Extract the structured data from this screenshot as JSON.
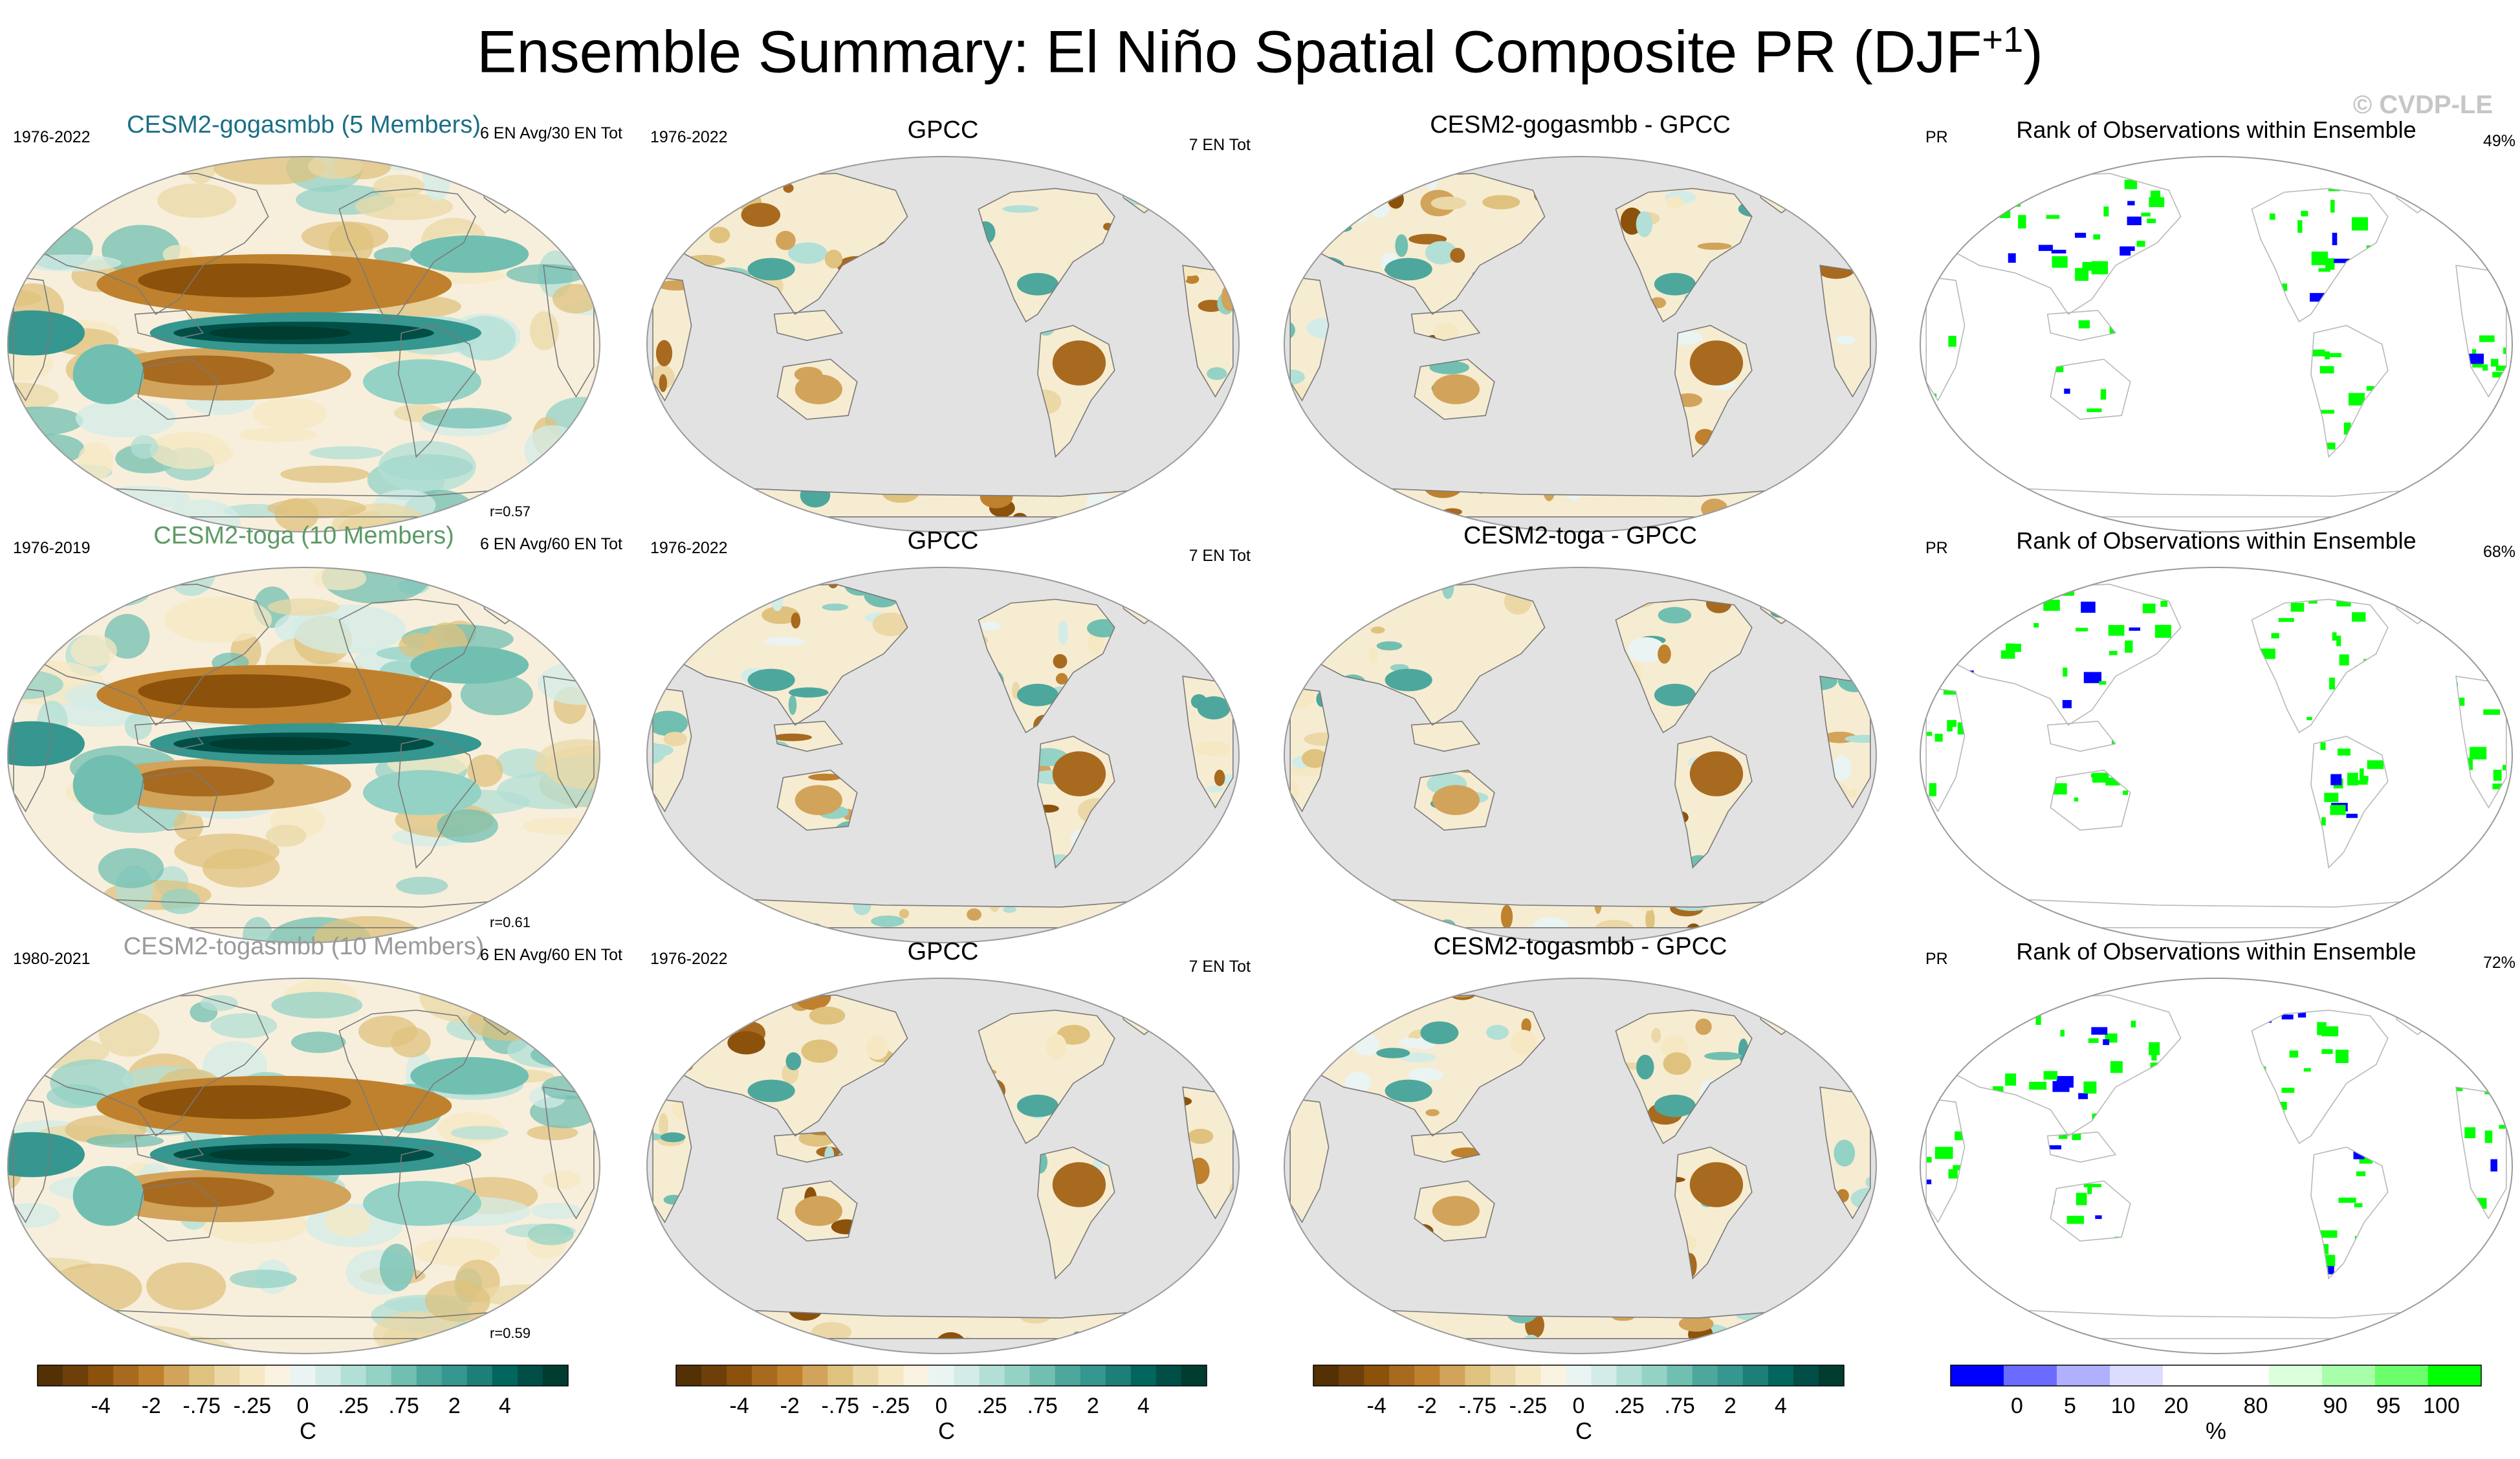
{
  "title": {
    "main": "Ensemble Summary: El Niño Spatial Composite PR (DJF",
    "sup": "+1",
    "end": ")"
  },
  "watermark": "© CVDP-LE",
  "colors": {
    "brown_green": [
      "#543005",
      "#6e3f0b",
      "#8c510a",
      "#a86a1f",
      "#bf812d",
      "#d2a35a",
      "#dfc27d",
      "#ebd8a6",
      "#f6e8c3",
      "#faf3e1",
      "#eaf4f2",
      "#d3ece8",
      "#b2dfd6",
      "#93d2c5",
      "#71bfb1",
      "#4ea79c",
      "#35978f",
      "#1d7f77",
      "#01665e",
      "#014e47",
      "#003c30"
    ],
    "rank": [
      "#0000ff",
      "#6b6bff",
      "#b0b0ff",
      "#dcdcff",
      "#ffffff",
      "#ffffff",
      "#dcffdc",
      "#a9ffa9",
      "#6bff6b",
      "#00ff00"
    ],
    "ocean_gray": "#e2e2e2",
    "rank_green": "#00ff00",
    "rank_blue": "#0000ff"
  },
  "rows": [
    {
      "model": {
        "title": "CESM2-gogasmbb (5 Members)",
        "title_color": "#1a6f86",
        "years": "1976-2022",
        "events": "6 EN Avg/30 EN Tot",
        "corr": "r=0.57"
      },
      "obs": {
        "title": "GPCC",
        "years": "1976-2022",
        "events": "7 EN Tot"
      },
      "diff": {
        "title": "CESM2-gogasmbb - GPCC"
      },
      "rank": {
        "title": "Rank of Observations within Ensemble",
        "var": "PR",
        "pct": "49%"
      }
    },
    {
      "model": {
        "title": "CESM2-toga (10 Members)",
        "title_color": "#5d9a64",
        "years": "1976-2019",
        "events": "6 EN Avg/60 EN Tot",
        "corr": "r=0.61"
      },
      "obs": {
        "title": "GPCC",
        "years": "1976-2022",
        "events": "7 EN Tot"
      },
      "diff": {
        "title": "CESM2-toga - GPCC"
      },
      "rank": {
        "title": "Rank of Observations within Ensemble",
        "var": "PR",
        "pct": "68%"
      }
    },
    {
      "model": {
        "title": "CESM2-togasmbb (10 Members)",
        "title_color": "#9a9a9a",
        "years": "1980-2021",
        "events": "6 EN Avg/60 EN Tot",
        "corr": "r=0.59"
      },
      "obs": {
        "title": "GPCC",
        "years": "1976-2022",
        "events": "7 EN Tot"
      },
      "diff": {
        "title": "CESM2-togasmbb - GPCC"
      },
      "rank": {
        "title": "Rank of Observations within Ensemble",
        "var": "PR",
        "pct": "72%"
      }
    }
  ],
  "colorbars": {
    "anomaly": {
      "ticks": [
        "-4",
        "-2",
        "-.75",
        "-.25",
        "0",
        ".25",
        ".75",
        "2",
        "4"
      ],
      "unit": "C"
    },
    "rank": {
      "ticks": [
        "0",
        "5",
        "10",
        "20",
        "80",
        "90",
        "95",
        "100"
      ],
      "unit": "%"
    }
  },
  "chart_data": {
    "type": "heatmap",
    "variable": "PR",
    "season": "DJF+1",
    "composite": "El Niño",
    "correlations": [
      0.57,
      0.61,
      0.59
    ],
    "rank_percent": [
      49,
      68,
      72
    ],
    "anomaly_levels": [
      "-4",
      "-2",
      "-.75",
      "-.25",
      "0",
      ".25",
      ".75",
      "2",
      "4"
    ],
    "rank_levels": [
      0,
      5,
      10,
      20,
      80,
      90,
      95,
      100
    ]
  }
}
